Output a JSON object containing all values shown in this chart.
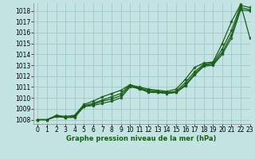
{
  "xlabel": "Graphe pression niveau de la mer (hPa)",
  "background_color": "#c4e4e4",
  "grid_color": "#a0c8c8",
  "line_color": "#1a5c1a",
  "xlim": [
    -0.5,
    23
  ],
  "ylim": [
    1007.6,
    1018.7
  ],
  "yticks": [
    1008,
    1009,
    1010,
    1011,
    1012,
    1013,
    1014,
    1015,
    1016,
    1017,
    1018
  ],
  "xticks": [
    0,
    1,
    2,
    3,
    4,
    5,
    6,
    7,
    8,
    9,
    10,
    11,
    12,
    13,
    14,
    15,
    16,
    17,
    18,
    19,
    20,
    21,
    22,
    23
  ],
  "series": [
    [
      1008.0,
      1008.0,
      1008.3,
      1008.2,
      1008.2,
      1009.2,
      1009.3,
      1009.5,
      1009.7,
      1010.0,
      1011.0,
      1010.9,
      1010.5,
      1010.5,
      1010.4,
      1010.5,
      1011.1,
      1012.1,
      1012.9,
      1013.0,
      1014.0,
      1015.5,
      1018.1,
      1018.0
    ],
    [
      1008.0,
      1008.0,
      1008.3,
      1008.2,
      1008.3,
      1009.2,
      1009.4,
      1009.7,
      1009.9,
      1010.2,
      1011.1,
      1010.8,
      1010.6,
      1010.5,
      1010.45,
      1010.5,
      1011.2,
      1012.2,
      1013.0,
      1013.1,
      1014.2,
      1015.8,
      1018.3,
      1018.1
    ],
    [
      1008.0,
      1008.0,
      1008.3,
      1008.2,
      1008.3,
      1009.3,
      1009.5,
      1009.8,
      1010.1,
      1010.4,
      1011.2,
      1010.9,
      1010.7,
      1010.6,
      1010.5,
      1010.6,
      1011.4,
      1012.4,
      1013.1,
      1013.2,
      1014.5,
      1016.2,
      1018.5,
      1018.3
    ],
    [
      1008.0,
      1008.0,
      1008.4,
      1008.3,
      1008.4,
      1009.4,
      1009.7,
      1010.1,
      1010.4,
      1010.7,
      1011.2,
      1011.0,
      1010.8,
      1010.7,
      1010.6,
      1010.8,
      1011.7,
      1012.8,
      1013.2,
      1013.3,
      1015.0,
      1017.0,
      1018.6,
      1015.5
    ]
  ],
  "tick_fontsize": 5.5,
  "xlabel_fontsize": 6,
  "lw": 0.9,
  "marker_size": 3
}
